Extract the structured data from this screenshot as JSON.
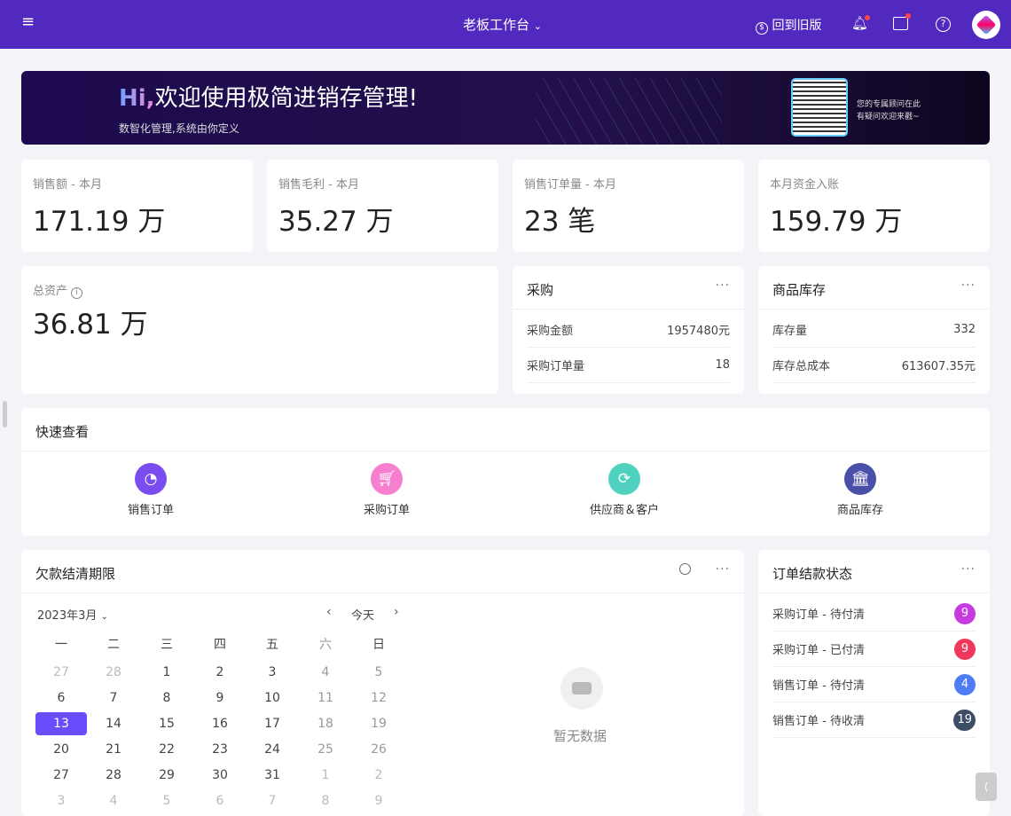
{
  "header": {
    "title": "老板工作台",
    "old_version": "回到旧版"
  },
  "banner": {
    "hi": "Hi,",
    "title": "欢迎使用极简进销存管理!",
    "subtitle": "数智化管理,系统由你定义",
    "qr_line1": "您的专属顾问在此",
    "qr_line2": "有疑问欢迎来戳~"
  },
  "stats": [
    {
      "label": "销售额 - 本月",
      "value": "171.19 万"
    },
    {
      "label": "销售毛利 - 本月",
      "value": "35.27 万"
    },
    {
      "label": "销售订单量 - 本月",
      "value": "23 笔"
    },
    {
      "label": "本月资金入账",
      "value": "159.79 万"
    }
  ],
  "assets": {
    "label": "总资产",
    "value": "36.81 万"
  },
  "purchase": {
    "title": "采购",
    "rows": [
      {
        "k": "采购金额",
        "v": "1957480元"
      },
      {
        "k": "采购订单量",
        "v": "18"
      }
    ]
  },
  "stock": {
    "title": "商品库存",
    "rows": [
      {
        "k": "库存量",
        "v": "332"
      },
      {
        "k": "库存总成本",
        "v": "613607.35元"
      }
    ]
  },
  "quick": {
    "title": "快速查看",
    "items": [
      {
        "label": "销售订单",
        "color": "#7a4df0",
        "icon": "pie-chart-icon"
      },
      {
        "label": "采购订单",
        "color": "#f77fd0",
        "icon": "cart-icon"
      },
      {
        "label": "供应商＆客户",
        "color": "#4fd1c0",
        "icon": "refresh-icon"
      },
      {
        "label": "商品库存",
        "color": "#4a4fa8",
        "icon": "bank-icon"
      }
    ]
  },
  "calendar": {
    "title": "欠款结清期限",
    "month": "2023年3月",
    "today": "今天",
    "empty": "暂无数据",
    "weekdays": [
      "一",
      "二",
      "三",
      "四",
      "五",
      "六",
      "日"
    ],
    "weeks": [
      [
        "27",
        "28",
        "1",
        "2",
        "3",
        "4",
        "5"
      ],
      [
        "6",
        "7",
        "8",
        "9",
        "10",
        "11",
        "12"
      ],
      [
        "13",
        "14",
        "15",
        "16",
        "17",
        "18",
        "19"
      ],
      [
        "20",
        "21",
        "22",
        "23",
        "24",
        "25",
        "26"
      ],
      [
        "27",
        "28",
        "29",
        "30",
        "31",
        "1",
        "2"
      ],
      [
        "3",
        "4",
        "5",
        "6",
        "7",
        "8",
        "9"
      ]
    ],
    "selected": "13"
  },
  "order_status": {
    "title": "订单结款状态",
    "rows": [
      {
        "k": "采购订单 - 待付清",
        "v": "9",
        "color": "#c63be0"
      },
      {
        "k": "采购订单 - 已付清",
        "v": "9",
        "color": "#f0385f"
      },
      {
        "k": "销售订单 - 待付清",
        "v": "4",
        "color": "#4d7cf5"
      },
      {
        "k": "销售订单 - 待收清",
        "v": "19",
        "color": "#3d4d66"
      }
    ]
  }
}
